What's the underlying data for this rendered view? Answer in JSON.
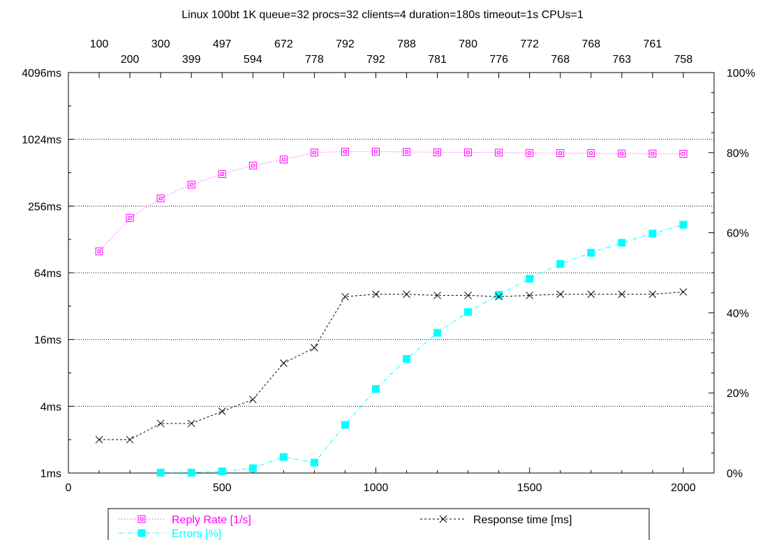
{
  "chart_data": {
    "type": "line",
    "title": "Linux 100bt 1K queue=32 procs=32 clients=4 duration=180s timeout=1s CPUs=1",
    "xlabel": "",
    "ylabel": "",
    "xlim": [
      0,
      2100
    ],
    "x_ticks": [
      0,
      500,
      1000,
      1500,
      2000
    ],
    "y_left": {
      "scale": "log2",
      "ylim": [
        1,
        4096
      ],
      "ticks": [
        1,
        4,
        16,
        64,
        256,
        1024,
        4096
      ],
      "tick_labels": [
        "1ms",
        "4ms",
        "16ms",
        "64ms",
        "256ms",
        "1024ms",
        "4096ms"
      ]
    },
    "y_right": {
      "ylim": [
        0,
        100
      ],
      "ticks": [
        0,
        20,
        40,
        60,
        80,
        100
      ],
      "tick_labels": [
        "0%",
        "20%",
        "40%",
        "60%",
        "80%",
        "100%"
      ]
    },
    "grid": true,
    "top_axis_labels": {
      "x": [
        100,
        200,
        300,
        400,
        500,
        600,
        700,
        800,
        900,
        1000,
        1100,
        1200,
        1300,
        1400,
        1500,
        1600,
        1700,
        1800,
        1900,
        2000
      ],
      "labels": [
        "100",
        "200",
        "300",
        "399",
        "497",
        "594",
        "672",
        "778",
        "792",
        "792",
        "788",
        "781",
        "780",
        "776",
        "772",
        "768",
        "768",
        "763",
        "761",
        "758"
      ]
    },
    "legend": {
      "placement": "bottom"
    },
    "series": [
      {
        "name": "Reply Rate [1/s]",
        "color": "#ff00ff",
        "marker": "open-square",
        "axis": "y_left",
        "x": [
          100,
          200,
          300,
          400,
          500,
          600,
          700,
          800,
          900,
          1000,
          1100,
          1200,
          1300,
          1400,
          1500,
          1600,
          1700,
          1800,
          1900,
          2000
        ],
        "y": [
          100,
          200,
          300,
          399,
          497,
          594,
          672,
          778,
          792,
          792,
          788,
          781,
          780,
          776,
          772,
          768,
          768,
          763,
          761,
          758
        ]
      },
      {
        "name": "Errors [%]",
        "color": "#00ffff",
        "marker": "filled-square",
        "axis": "y_right",
        "x": [
          300,
          400,
          500,
          600,
          700,
          800,
          900,
          1000,
          1100,
          1200,
          1300,
          1400,
          1500,
          1600,
          1700,
          1800,
          1900,
          2000
        ],
        "y": [
          0.1,
          0.1,
          0.4,
          1.2,
          4.0,
          2.6,
          12.0,
          21.0,
          28.5,
          35.0,
          40.2,
          44.5,
          48.5,
          52.2,
          55.0,
          57.5,
          59.8,
          62.0
        ]
      },
      {
        "name": "Response time [ms]",
        "color": "#000000",
        "marker": "x",
        "axis": "y_left",
        "x": [
          100,
          200,
          300,
          400,
          500,
          600,
          700,
          800,
          900,
          1000,
          1100,
          1200,
          1300,
          1400,
          1500,
          1600,
          1700,
          1800,
          1900,
          2000
        ],
        "y": [
          2.0,
          2.0,
          2.8,
          2.8,
          3.6,
          4.6,
          9.8,
          13.5,
          39,
          41,
          41,
          40,
          40,
          39,
          40,
          41,
          41,
          41,
          41,
          43
        ]
      }
    ],
    "reply_rate_axis": {
      "scale": "log2",
      "ylim": [
        1,
        4096
      ]
    }
  }
}
